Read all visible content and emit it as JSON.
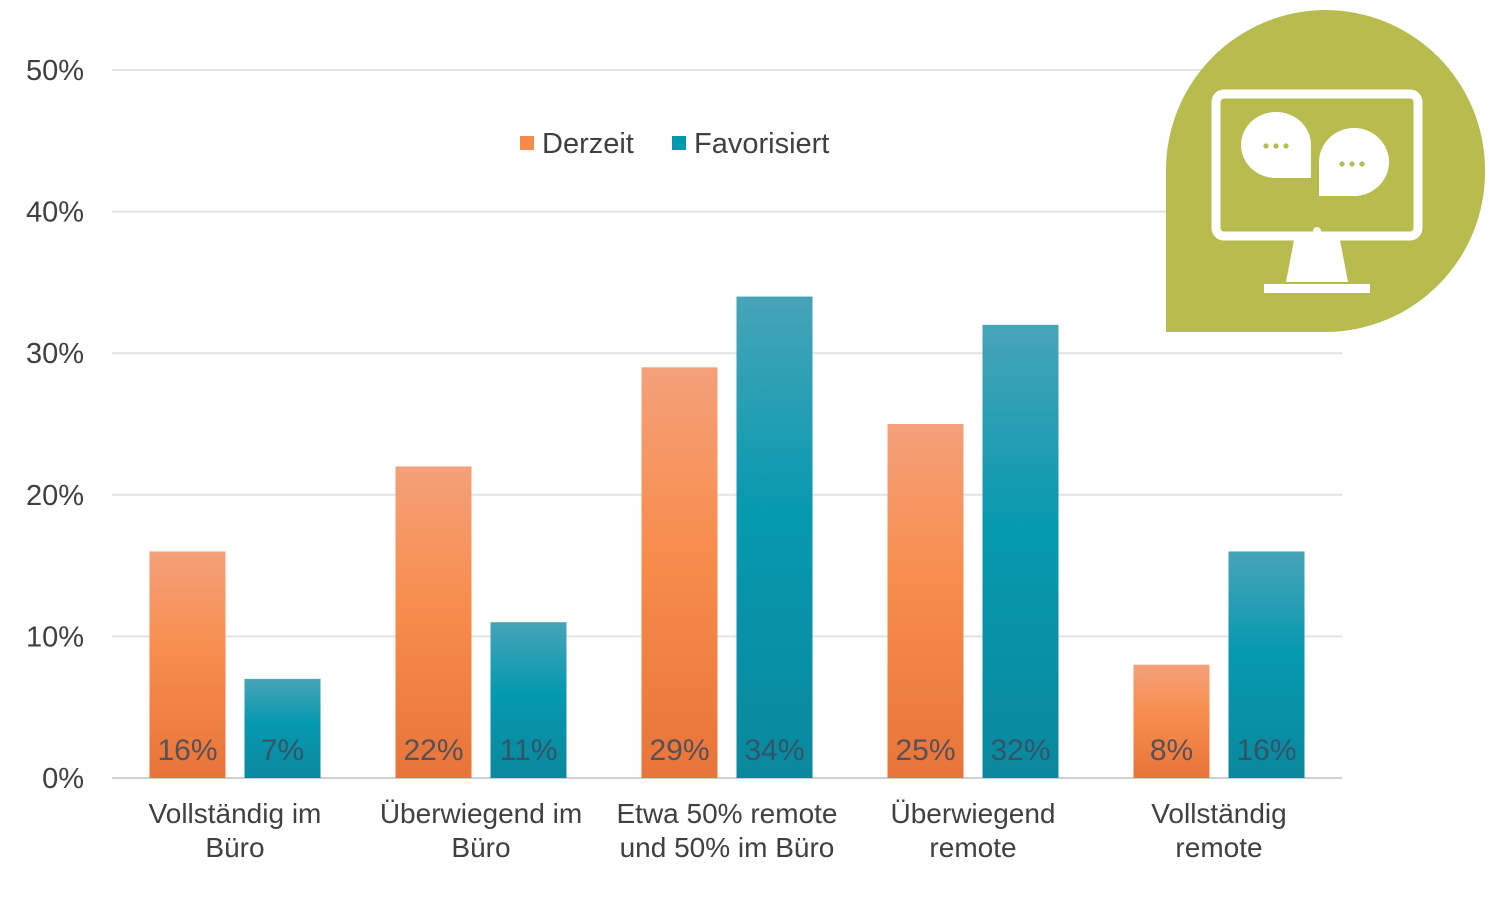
{
  "chart_data": {
    "type": "bar",
    "title": "",
    "xlabel": "",
    "ylabel": "",
    "categories": [
      [
        "Vollständig im",
        "Büro"
      ],
      [
        "Überwiegend im",
        "Büro"
      ],
      [
        "Etwa 50% remote",
        "und 50% im Büro"
      ],
      [
        "Überwiegend",
        "remote"
      ],
      [
        "Vollständig",
        "remote"
      ]
    ],
    "series": [
      {
        "name": "Derzeit",
        "color": "#f58a4b",
        "values": [
          16,
          22,
          29,
          25,
          8
        ],
        "labels": [
          "16%",
          "22%",
          "29%",
          "25%",
          "8%"
        ]
      },
      {
        "name": "Favorisiert",
        "color": "#0099b0",
        "values": [
          7,
          11,
          34,
          32,
          16
        ],
        "labels": [
          "7%",
          "11%",
          "34%",
          "32%",
          "16%"
        ]
      }
    ],
    "ylim": [
      0,
      50
    ],
    "yticks": [
      0,
      10,
      20,
      30,
      40,
      50
    ],
    "ytick_labels": [
      "0%",
      "10%",
      "20%",
      "30%",
      "40%",
      "50%"
    ],
    "grid": true,
    "legend_position": "top-center"
  },
  "decoration": {
    "icon": "monitor-chat-icon",
    "badge_color": "#b8bb4e"
  }
}
